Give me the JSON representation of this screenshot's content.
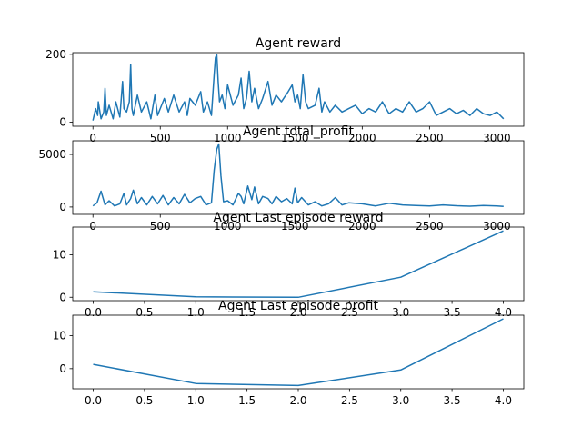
{
  "window": {
    "title": ""
  },
  "colors": {
    "line": "#1f77b4",
    "axes": "#000000",
    "background": "#ffffff"
  },
  "chart_data": [
    {
      "type": "line",
      "title": "Agent reward",
      "xlabel": "",
      "ylabel": "",
      "xlim": [
        -150,
        3200
      ],
      "ylim": [
        -12,
        205
      ],
      "xticks": [
        0,
        500,
        1000,
        1500,
        2000,
        2500,
        3000
      ],
      "xtick_labels": [
        "0",
        "500",
        "1000",
        "1500",
        "2000",
        "2500",
        "3000"
      ],
      "yticks": [
        0,
        200
      ],
      "ytick_labels": [
        "0",
        "200"
      ],
      "grid": false,
      "series": [
        {
          "x": [
            0,
            20,
            35,
            40,
            60,
            80,
            90,
            100,
            120,
            150,
            170,
            200,
            220,
            230,
            250,
            270,
            280,
            290,
            300,
            330,
            360,
            400,
            430,
            460,
            480,
            500,
            530,
            560,
            600,
            640,
            680,
            700,
            720,
            760,
            800,
            820,
            850,
            880,
            900,
            910,
            920,
            930,
            940,
            960,
            980,
            1000,
            1040,
            1080,
            1100,
            1120,
            1140,
            1160,
            1180,
            1200,
            1230,
            1260,
            1300,
            1330,
            1360,
            1400,
            1450,
            1480,
            1500,
            1520,
            1540,
            1560,
            1580,
            1600,
            1650,
            1680,
            1700,
            1720,
            1760,
            1800,
            1850,
            1900,
            1950,
            2000,
            2050,
            2100,
            2150,
            2200,
            2250,
            2300,
            2350,
            2400,
            2450,
            2500,
            2550,
            2600,
            2650,
            2700,
            2750,
            2800,
            2850,
            2900,
            2950,
            3000,
            3050
          ],
          "y": [
            5,
            40,
            20,
            60,
            10,
            30,
            100,
            20,
            50,
            10,
            60,
            15,
            120,
            40,
            30,
            60,
            170,
            40,
            20,
            80,
            30,
            60,
            10,
            80,
            20,
            40,
            70,
            30,
            80,
            30,
            60,
            20,
            70,
            50,
            90,
            30,
            60,
            20,
            140,
            190,
            200,
            120,
            60,
            80,
            40,
            110,
            50,
            80,
            130,
            40,
            70,
            150,
            60,
            100,
            40,
            70,
            120,
            50,
            80,
            60,
            90,
            110,
            60,
            80,
            40,
            140,
            60,
            40,
            50,
            100,
            30,
            60,
            30,
            50,
            30,
            40,
            50,
            25,
            40,
            30,
            60,
            25,
            40,
            30,
            60,
            30,
            40,
            60,
            20,
            30,
            40,
            25,
            35,
            20,
            40,
            25,
            20,
            30,
            10
          ]
        }
      ]
    },
    {
      "type": "line",
      "title": "Agent total_profit",
      "xlabel": "",
      "ylabel": "",
      "xlim": [
        -150,
        3200
      ],
      "ylim": [
        -700,
        6300
      ],
      "xticks": [
        0,
        500,
        1000,
        1500,
        2000,
        2500,
        3000
      ],
      "xtick_labels": [
        "0",
        "500",
        "1000",
        "1500",
        "2000",
        "2500",
        "3000"
      ],
      "yticks": [
        0,
        5000
      ],
      "ytick_labels": [
        "0",
        "5000"
      ],
      "grid": false,
      "series": [
        {
          "x": [
            0,
            30,
            60,
            90,
            120,
            160,
            200,
            230,
            250,
            280,
            300,
            330,
            360,
            400,
            440,
            480,
            520,
            560,
            600,
            640,
            680,
            720,
            760,
            800,
            840,
            880,
            900,
            920,
            935,
            950,
            970,
            1000,
            1040,
            1080,
            1100,
            1120,
            1150,
            1180,
            1200,
            1230,
            1260,
            1300,
            1330,
            1360,
            1400,
            1440,
            1480,
            1500,
            1520,
            1550,
            1600,
            1650,
            1700,
            1750,
            1800,
            1850,
            1900,
            2000,
            2100,
            2200,
            2300,
            2400,
            2500,
            2600,
            2700,
            2800,
            2900,
            3000,
            3050
          ],
          "y": [
            100,
            400,
            1500,
            200,
            600,
            100,
            300,
            1300,
            200,
            800,
            1600,
            300,
            900,
            200,
            1000,
            300,
            1100,
            200,
            900,
            300,
            1200,
            400,
            800,
            1000,
            200,
            400,
            3500,
            5500,
            6000,
            3000,
            500,
            600,
            200,
            1300,
            1000,
            300,
            2000,
            700,
            1900,
            300,
            1000,
            800,
            300,
            1000,
            500,
            800,
            300,
            1800,
            400,
            900,
            200,
            500,
            100,
            300,
            900,
            200,
            400,
            300,
            100,
            350,
            200,
            150,
            100,
            200,
            120,
            80,
            150,
            100,
            50
          ]
        }
      ]
    },
    {
      "type": "line",
      "title": "Agent Last episode reward",
      "xlabel": "",
      "ylabel": "",
      "xlim": [
        -0.2,
        4.2
      ],
      "ylim": [
        -0.8,
        16.5
      ],
      "xticks": [
        0,
        0.5,
        1,
        1.5,
        2,
        2.5,
        3,
        3.5,
        4
      ],
      "xtick_labels": [
        "0.0",
        "0.5",
        "1.0",
        "1.5",
        "2.0",
        "2.5",
        "3.0",
        "3.5",
        "4.0"
      ],
      "yticks": [
        0,
        10
      ],
      "ytick_labels": [
        "0",
        "10"
      ],
      "grid": false,
      "series": [
        {
          "x": [
            0,
            1,
            2,
            3,
            4
          ],
          "y": [
            1.3,
            0.1,
            0.0,
            4.7,
            15.6
          ]
        }
      ]
    },
    {
      "type": "line",
      "title": "Agent Last episode profit",
      "xlabel": "",
      "ylabel": "",
      "xlim": [
        -0.2,
        4.2
      ],
      "ylim": [
        -6.1,
        16.2
      ],
      "xticks": [
        0,
        0.5,
        1,
        1.5,
        2,
        2.5,
        3,
        3.5,
        4
      ],
      "xtick_labels": [
        "0.0",
        "0.5",
        "1.0",
        "1.5",
        "2.0",
        "2.5",
        "3.0",
        "3.5",
        "4.0"
      ],
      "yticks": [
        0,
        10
      ],
      "ytick_labels": [
        "0",
        "10"
      ],
      "grid": false,
      "series": [
        {
          "x": [
            0,
            1,
            2,
            3,
            4
          ],
          "y": [
            1.3,
            -4.5,
            -5.1,
            -0.4,
            15.1
          ]
        }
      ]
    }
  ]
}
